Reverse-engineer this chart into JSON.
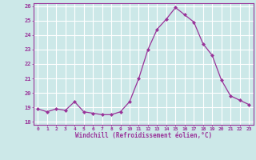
{
  "hours": [
    0,
    1,
    2,
    3,
    4,
    5,
    6,
    7,
    8,
    9,
    10,
    11,
    12,
    13,
    14,
    15,
    16,
    17,
    18,
    19,
    20,
    21,
    22,
    23
  ],
  "values": [
    18.9,
    18.7,
    18.9,
    18.8,
    19.4,
    18.7,
    18.6,
    18.5,
    18.5,
    18.7,
    19.4,
    21.0,
    23.0,
    24.4,
    25.1,
    25.9,
    25.4,
    24.9,
    23.4,
    22.6,
    20.9,
    19.8,
    19.5,
    19.2
  ],
  "line_color": "#993399",
  "marker": "D",
  "marker_size": 2.0,
  "bg_color": "#cce8e8",
  "grid_color": "#ffffff",
  "xlabel": "Windchill (Refroidissement éolien,°C)",
  "xlabel_color": "#993399",
  "tick_color": "#993399",
  "ylim": [
    17.8,
    26.2
  ],
  "yticks": [
    18,
    19,
    20,
    21,
    22,
    23,
    24,
    25,
    26
  ],
  "xticks": [
    0,
    1,
    2,
    3,
    4,
    5,
    6,
    7,
    8,
    9,
    10,
    11,
    12,
    13,
    14,
    15,
    16,
    17,
    18,
    19,
    20,
    21,
    22,
    23
  ]
}
